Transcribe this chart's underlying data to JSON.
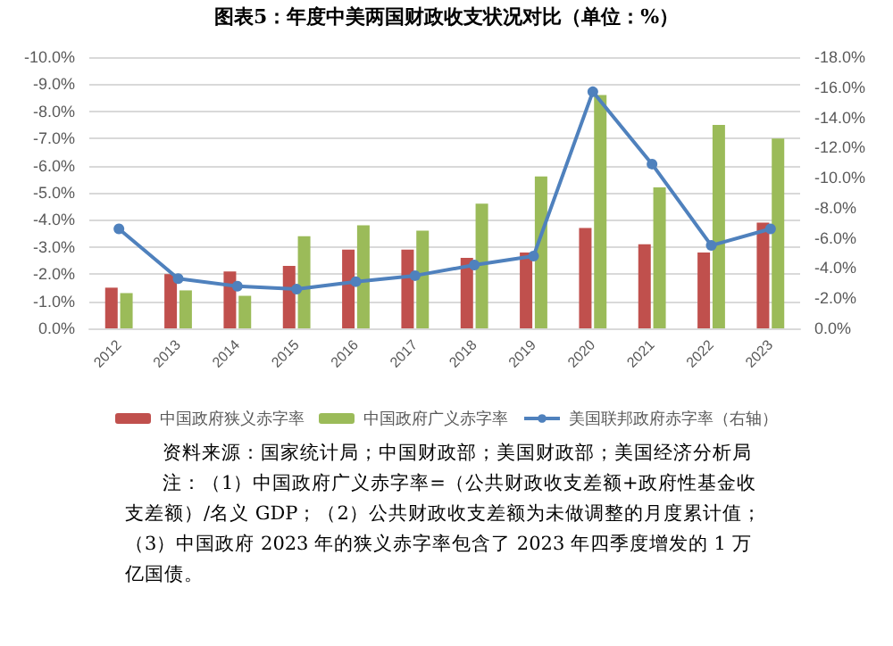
{
  "chart_data": {
    "type": "bar",
    "title": "图表5：年度中美两国财政收支状况对比（单位：%）",
    "categories": [
      "2012",
      "2013",
      "2014",
      "2015",
      "2016",
      "2017",
      "2018",
      "2019",
      "2020",
      "2021",
      "2022",
      "2023"
    ],
    "series": [
      {
        "name": "中国政府狭义赤字率",
        "color": "#c0504d",
        "values": [
          -1.5,
          -2.0,
          -2.1,
          -2.3,
          -2.9,
          -2.9,
          -2.6,
          -2.8,
          -3.7,
          -3.1,
          -2.8,
          -3.9
        ]
      },
      {
        "name": "中国政府广义赤字率",
        "color": "#9bbb59",
        "values": [
          -1.3,
          -1.4,
          -1.2,
          -3.4,
          -3.8,
          -3.6,
          -4.6,
          -5.6,
          -8.6,
          -5.2,
          -7.5,
          -7.0
        ]
      },
      {
        "name": "美国联邦政府赤字率（右轴）",
        "type": "line",
        "axis": "y2",
        "color": "#4f81bd",
        "values": [
          -6.6,
          -3.3,
          -2.8,
          -2.6,
          -3.1,
          -3.5,
          -4.2,
          -4.8,
          -15.7,
          -10.9,
          -5.5,
          -6.6
        ]
      }
    ],
    "ylim": [
      0,
      -10
    ],
    "yticks": [
      {
        "value": 0,
        "label": "0.0%"
      },
      {
        "value": -1,
        "label": "-1.0%"
      },
      {
        "value": -2,
        "label": "-2.0%"
      },
      {
        "value": -3,
        "label": "-3.0%"
      },
      {
        "value": -4,
        "label": "-4.0%"
      },
      {
        "value": -5,
        "label": "-5.0%"
      },
      {
        "value": -6,
        "label": "-6.0%"
      },
      {
        "value": -7,
        "label": "-7.0%"
      },
      {
        "value": -8,
        "label": "-8.0%"
      },
      {
        "value": -9,
        "label": "-9.0%"
      },
      {
        "value": -10,
        "label": "-10.0%"
      }
    ],
    "y2lim": [
      0,
      -18
    ],
    "y2ticks": [
      {
        "value": 0,
        "label": "0.0%"
      },
      {
        "value": -2,
        "label": "-2.0%"
      },
      {
        "value": -4,
        "label": "-4.0%"
      },
      {
        "value": -6,
        "label": "-6.0%"
      },
      {
        "value": -8,
        "label": "-8.0%"
      },
      {
        "value": -10,
        "label": "-10.0%"
      },
      {
        "value": -12,
        "label": "-12.0%"
      },
      {
        "value": -14,
        "label": "-14.0%"
      },
      {
        "value": -16,
        "label": "-16.0%"
      },
      {
        "value": -18,
        "label": "-18.0%"
      }
    ],
    "grid": "y",
    "legend": "bottom",
    "marker": "circle",
    "annotations": [
      "资料来源：国家统计局；中国财政部；美国财政部；美国经济分析局",
      "注：（1）中国政府广义赤字率=（公共财政收支差额+政府性基金收支差额）/名义 GDP；（2）公共财政收支差额为未做调整的月度累计值；（3）中国政府 2023 年的狭义赤字率包含了 2023 年四季度增发的 1 万亿国债。"
    ]
  }
}
